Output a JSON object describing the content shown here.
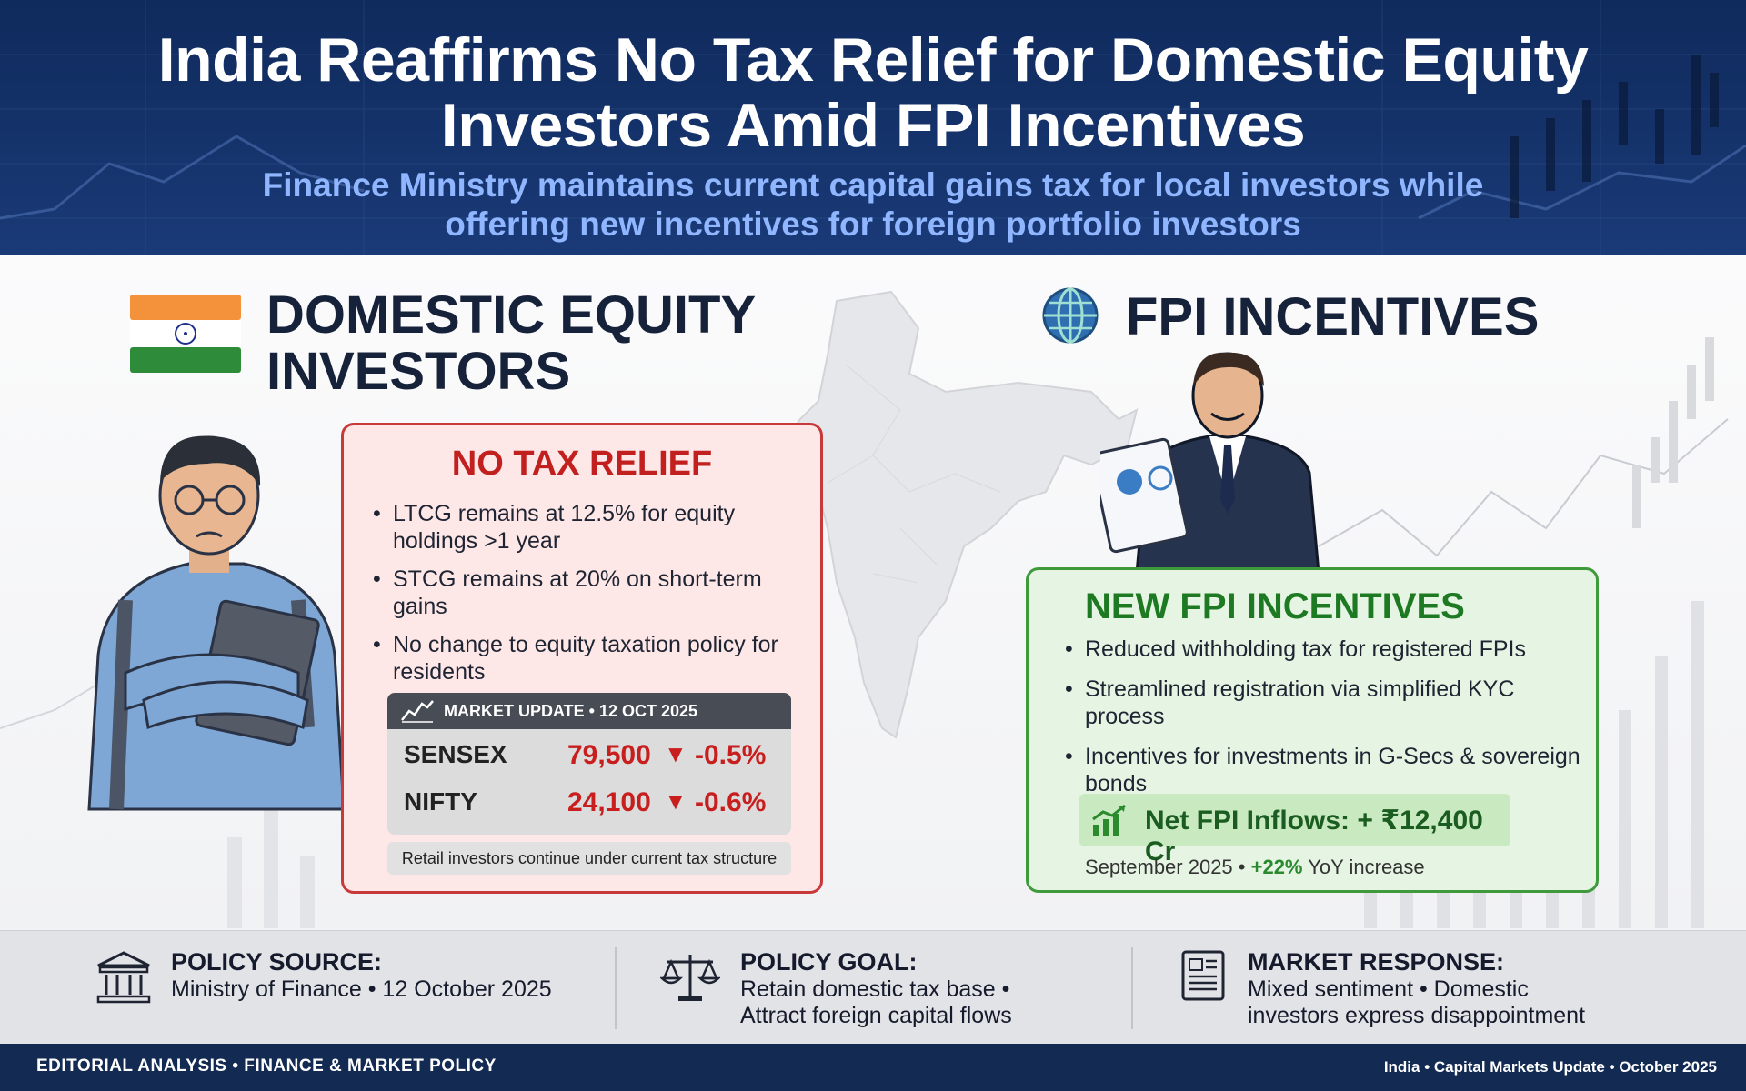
{
  "header": {
    "title_lines": [
      "India Reaffirms No Tax Relief for Domestic Equity",
      "Investors Amid FPI Incentives"
    ],
    "subtitle_lines": [
      "Finance Ministry maintains current capital gains tax for local investors while",
      "offering new incentives for foreign portfolio investors"
    ]
  },
  "left": {
    "section_title_lines": [
      "DOMESTIC EQUITY",
      "INVESTORS"
    ],
    "card": {
      "title": "NO TAX RELIEF",
      "points": [
        "LTCG remains at 12.5% for equity holdings >1 year",
        "STCG remains at 20% on short-term gains",
        "No change to equity taxation policy for residents"
      ],
      "market": {
        "header": "MARKET UPDATE • 12 OCT 2025",
        "rows": [
          {
            "name": "SENSEX",
            "value": "79,500",
            "arrow": "▼",
            "change": "-0.5%"
          },
          {
            "name": "NIFTY",
            "value": "24,100",
            "arrow": "▼",
            "change": "-0.6%"
          }
        ]
      },
      "note": "Retail investors continue under current tax structure"
    }
  },
  "right": {
    "section_title": "FPI INCENTIVES",
    "card": {
      "title": "NEW FPI INCENTIVES",
      "points": [
        "Reduced withholding tax for registered FPIs",
        "Streamlined registration via simplified KYC process",
        "Incentives for investments in G-Secs & sovereign bonds"
      ],
      "inflow": "Net FPI Inflows: + ₹12,400 Cr",
      "period": "September 2025 •",
      "yoy": "+22%",
      "yoy_suffix": "YoY increase"
    }
  },
  "info": {
    "source": {
      "label": "POLICY SOURCE:",
      "lines": [
        "Ministry of Finance • 12 October 2025"
      ]
    },
    "goal": {
      "label": "POLICY GOAL:",
      "lines": [
        "Retain domestic tax base •",
        "Attract foreign capital flows"
      ]
    },
    "response": {
      "label": "MARKET RESPONSE:",
      "lines": [
        "Mixed sentiment • Domestic",
        "investors express disappointment"
      ]
    }
  },
  "footer": {
    "left": "EDITORIAL ANALYSIS • FINANCE & MARKET POLICY",
    "right": "India • Capital Markets Update • October 2025"
  },
  "colors": {
    "header_bg": "#0f2a5c",
    "subtitle": "#8fb6ff",
    "relief_red": "#c21f1f",
    "fpi_green": "#1d7a22",
    "footer_bg": "#132a52"
  },
  "icons": [
    "india-flag-icon",
    "globe-icon",
    "market-line-icon",
    "growth-chart-icon",
    "government-building-icon",
    "scales-icon",
    "newspaper-icon"
  ]
}
